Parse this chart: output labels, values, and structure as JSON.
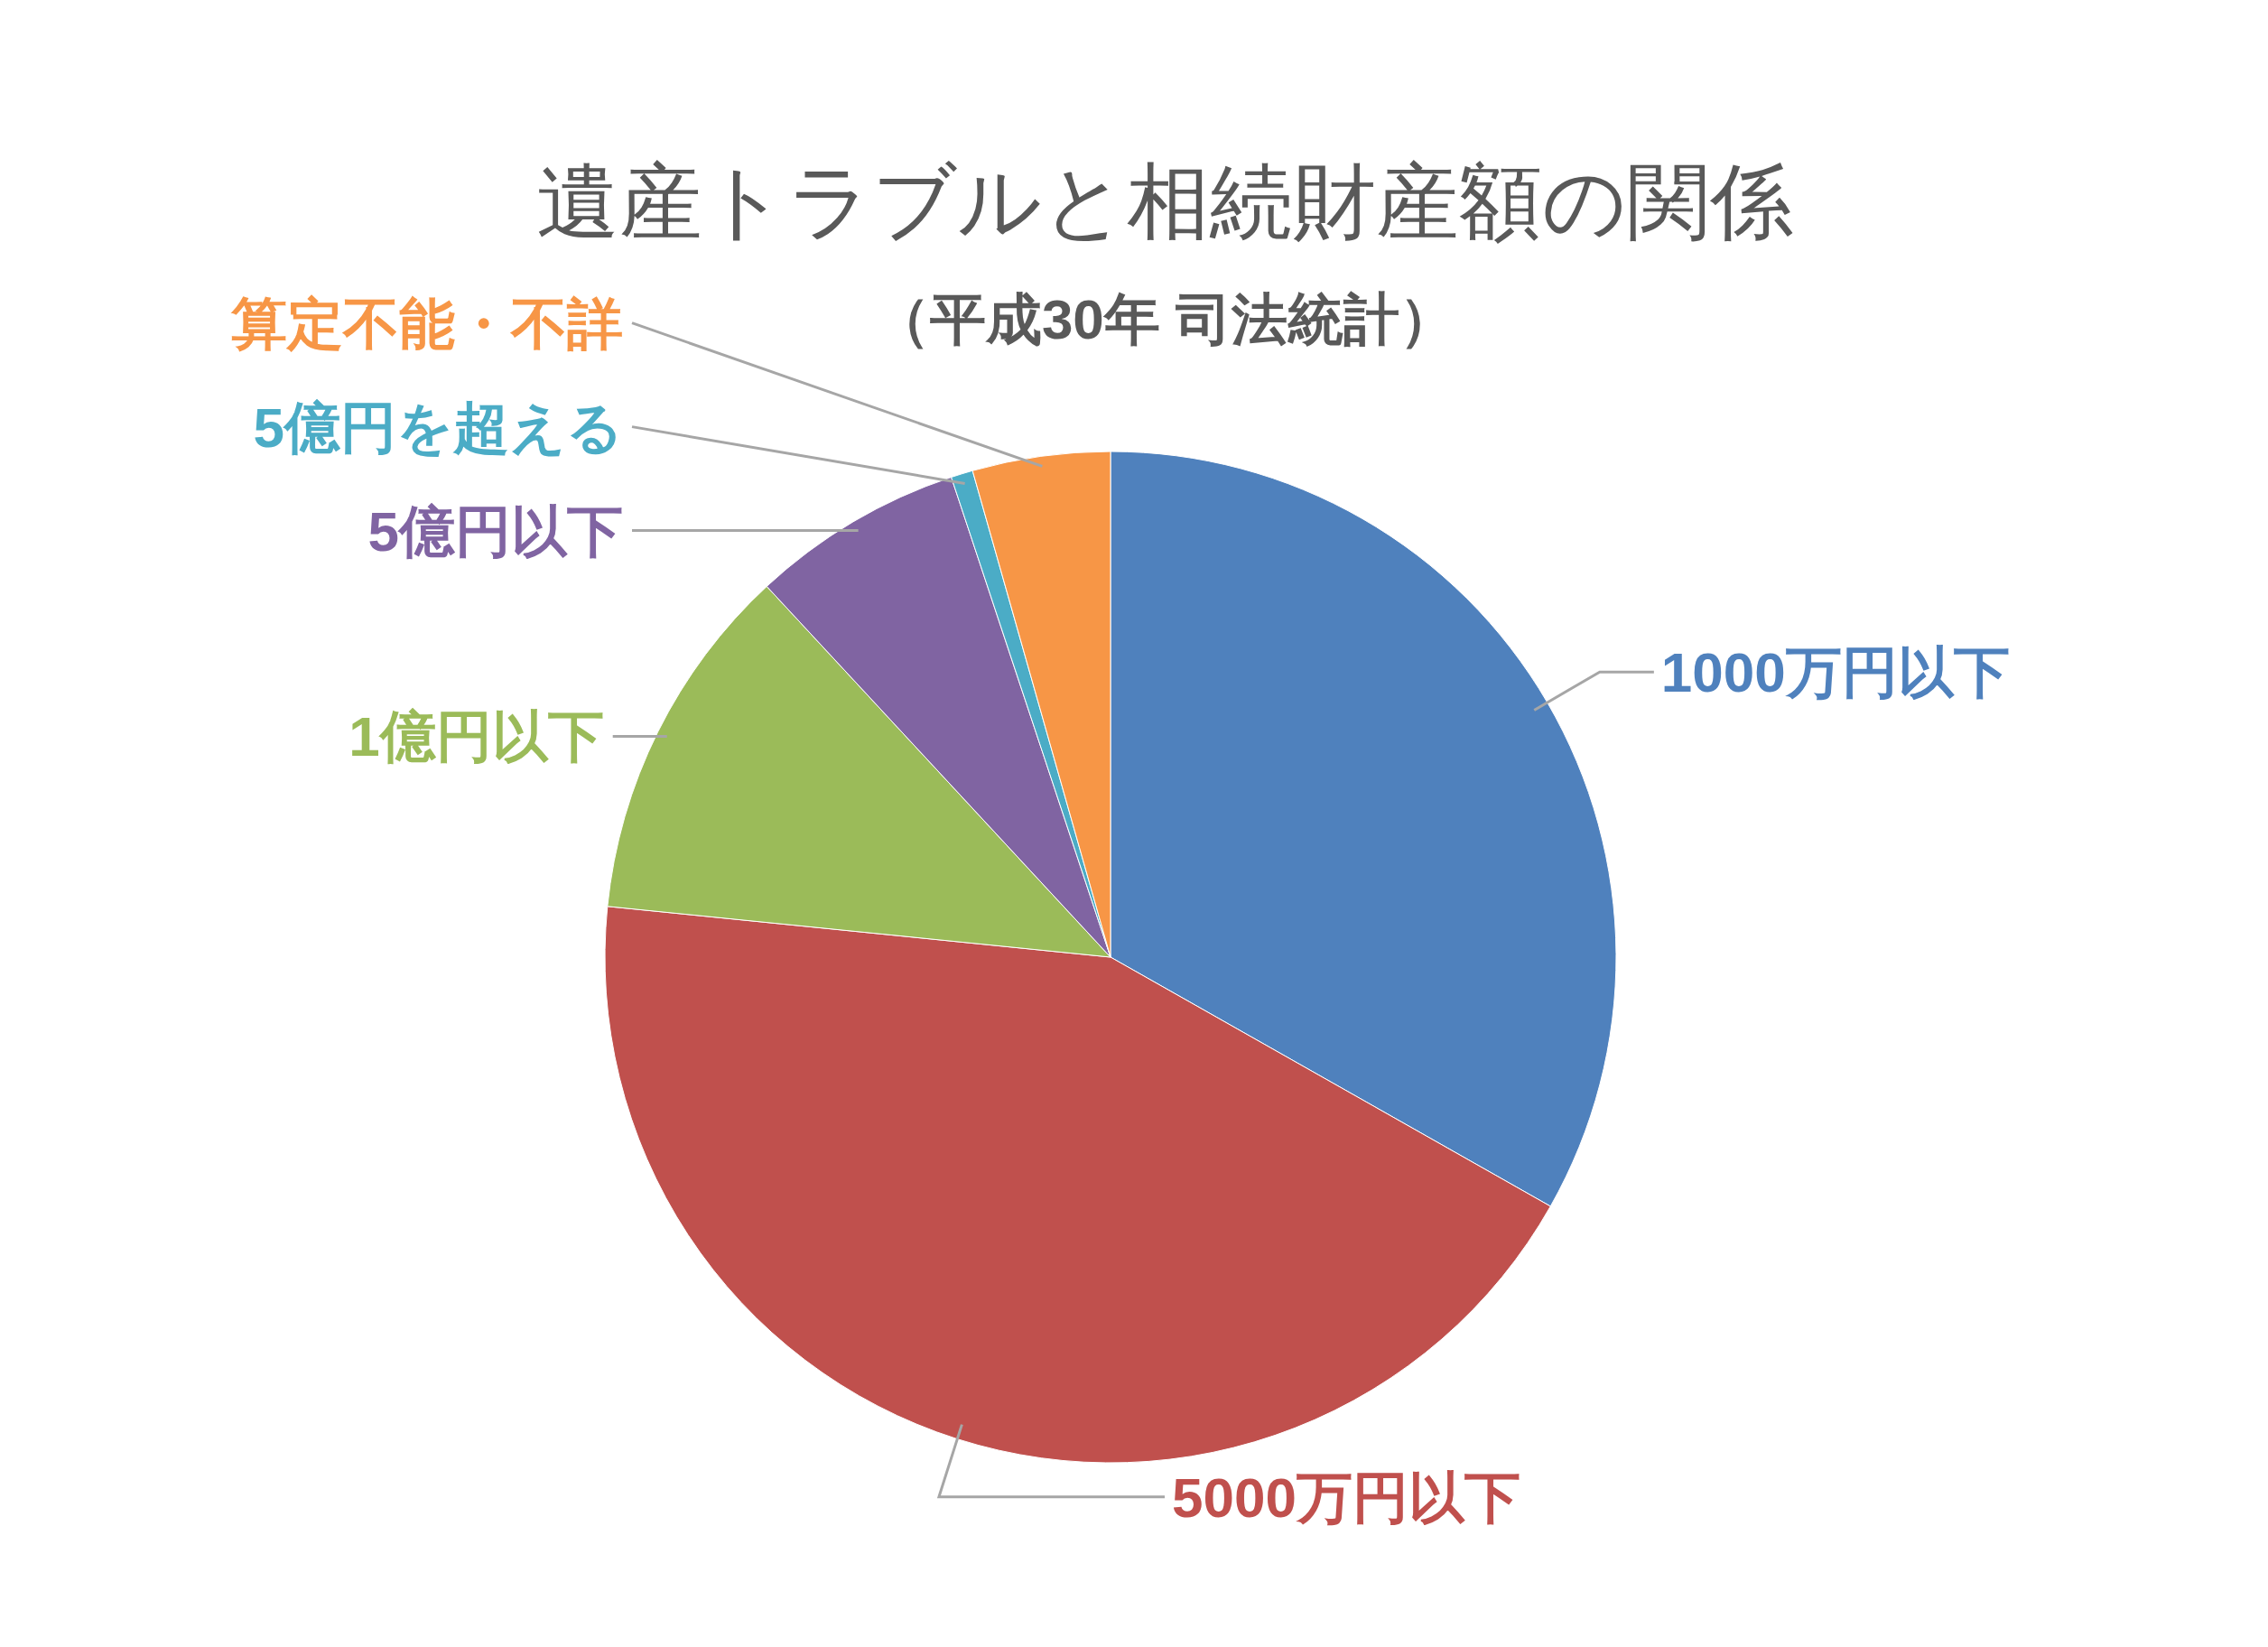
{
  "chart_data": {
    "type": "pie",
    "title": "遺産トラブルと相続財産額の関係",
    "subtitle": "（平成30年 司法統計）",
    "categories": [
      "1000万円以下",
      "5000万円以下",
      "1億円以下",
      "5億円以下",
      "5億円を超える",
      "算定不能・不詳"
    ],
    "values": [
      33.2,
      43.4,
      11.5,
      6.8,
      0.7,
      4.4
    ],
    "colors": [
      "#4f81bd",
      "#c0504d",
      "#9bbb59",
      "#8064a2",
      "#4bacc6",
      "#f79646"
    ]
  }
}
